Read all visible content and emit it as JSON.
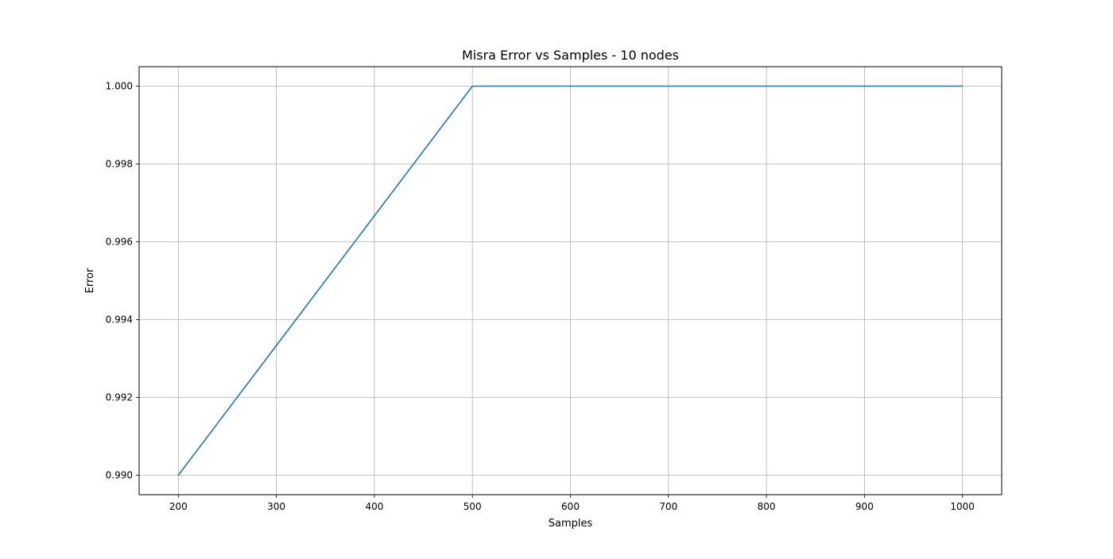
{
  "chart_data": {
    "type": "line",
    "title": "Misra Error vs Samples - 10 nodes",
    "xlabel": "Samples",
    "ylabel": "Error",
    "xlim": [
      160,
      1040
    ],
    "ylim": [
      0.9895,
      1.0005
    ],
    "xticks": [
      200,
      300,
      400,
      500,
      600,
      700,
      800,
      900,
      1000
    ],
    "yticks": [
      0.99,
      0.992,
      0.994,
      0.996,
      0.998,
      1.0
    ],
    "grid": true,
    "series": [
      {
        "color": "#1f77b4",
        "x": [
          200,
          500,
          600,
          700,
          800,
          900,
          1000
        ],
        "y": [
          0.99,
          1.0,
          1.0,
          1.0,
          1.0,
          1.0,
          1.0
        ]
      }
    ]
  }
}
